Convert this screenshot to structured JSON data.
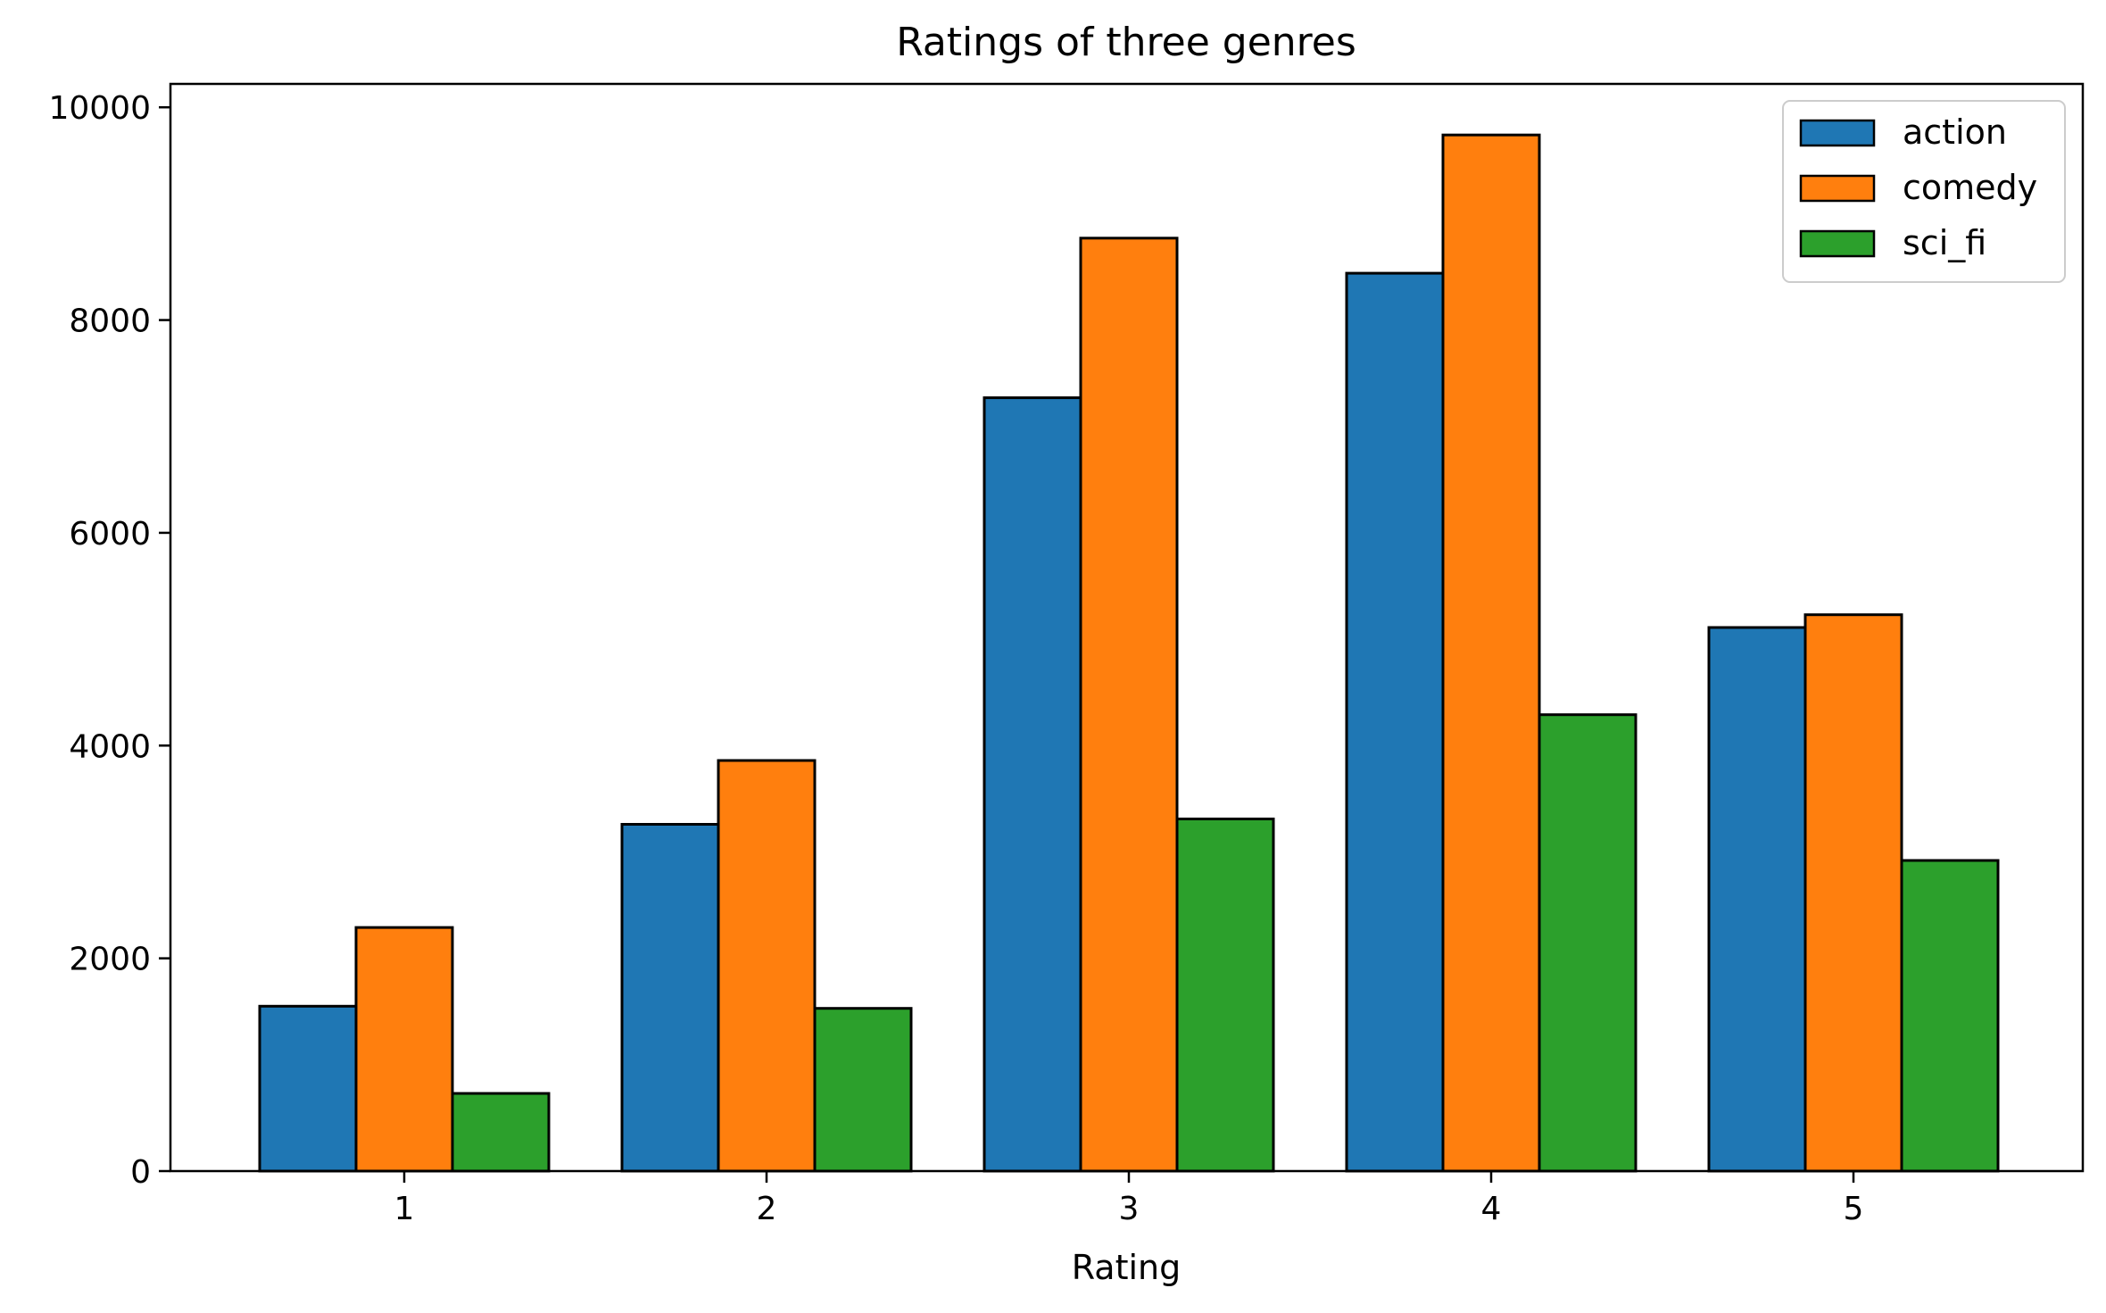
{
  "chart_data": {
    "type": "bar",
    "title": "Ratings of three genres",
    "xlabel": "Rating",
    "ylabel": "",
    "categories": [
      "1",
      "2",
      "3",
      "4",
      "5"
    ],
    "series": [
      {
        "name": "action",
        "color": "#1f77b4",
        "values": [
          1550,
          3260,
          7270,
          8440,
          5110
        ]
      },
      {
        "name": "comedy",
        "color": "#ff7f0e",
        "values": [
          2290,
          3860,
          8770,
          9740,
          5230
        ]
      },
      {
        "name": "sci_fi",
        "color": "#2ca02c",
        "values": [
          730,
          1530,
          3310,
          4290,
          2920
        ]
      }
    ],
    "ylim": [
      0,
      10220
    ],
    "yticks": [
      0,
      2000,
      4000,
      6000,
      8000,
      10000
    ],
    "ytick_labels": [
      "0",
      "2000",
      "4000",
      "6000",
      "8000",
      "10000"
    ],
    "xtick_labels": [
      "1",
      "2",
      "3",
      "4",
      "5"
    ],
    "grid": false,
    "legend_position": "top-right",
    "edge_color": "#000000"
  }
}
